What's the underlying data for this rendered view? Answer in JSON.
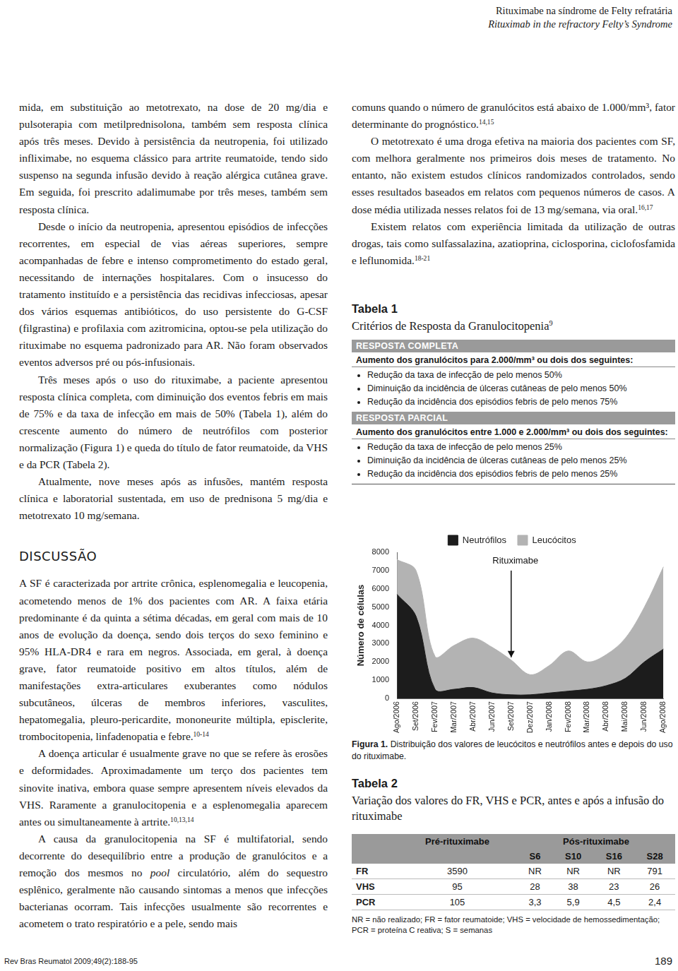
{
  "header": {
    "title": "Rituximabe na síndrome de Felty refratária",
    "subtitle": "Rituximab in the refractory Felty’s Syndrome"
  },
  "left_column": [
    {
      "kind": "p",
      "runs": [
        {
          "text": "mida, em substituição ao metotrexato, na dose de 20 mg/dia e pulsoterapia com metilprednisolona, também sem resposta clínica após três meses. Devido à persistência da neutropenia, foi utilizado infliximabe, no esquema clássico para artrite reumatoide, tendo sido suspenso na segunda infusão devido à reação alérgica cutânea grave. Em seguida, foi prescrito adalimumabe por três meses, também sem resposta clínica."
        }
      ]
    },
    {
      "kind": "p",
      "runs": [
        {
          "text": "Desde o início da neutropenia, apresentou episódios de infecções recorrentes, em especial de vias aéreas superiores, sempre acompanhadas de febre e intenso comprometimento do estado geral, necessitando de internações hospitalares. Com o insucesso do tratamento instituído e a persistência das recidivas infecciosas, apesar dos vários esquemas antibióticos, do uso persistente do G-CSF (filgrastina) e profilaxia com azitromicina, optou-se pela utilização do rituximabe no esquema padronizado para AR. Não foram observados eventos adversos pré ou pós-infusionais."
        }
      ]
    },
    {
      "kind": "p",
      "runs": [
        {
          "text": "Três meses após o uso do rituximabe, a paciente apresentou resposta clínica completa, com diminuição dos eventos febris em mais de 75% e da taxa de infecção em mais de 50% (Tabela 1), além do crescente aumento do número de neutrófilos com posterior normalização (Figura 1) e queda do título de fator reumatoide, da VHS e da PCR (Tabela 2)."
        }
      ]
    },
    {
      "kind": "p",
      "runs": [
        {
          "text": "Atualmente, nove meses após as infusões, mantém resposta clínica e laboratorial sustentada, em uso de prednisona 5 mg/dia e metotrexato 10 mg/semana."
        }
      ]
    },
    {
      "kind": "h",
      "text": "DISCUSSÃO"
    },
    {
      "kind": "p",
      "runs": [
        {
          "text": "A SF é caracterizada por artrite crônica, esplenomegalia e leucopenia, acometendo menos de 1% dos pacientes com AR. A faixa etária predominante é da quinta a sétima décadas, em geral com mais de 10 anos de evolução da doença, sendo dois terços do sexo feminino e 95% HLA-DR4 e rara em negros. Associada, em geral, à doença grave, fator reumatoide positivo em altos títulos, além de manifestações extra-articulares exuberantes como nódulos subcutâneos, úlceras de membros inferiores, vasculites, hepatomegalia, pleuro-pericardite, mononeurite múltipla, episclerite, trombocitopenia, linfadenopatia e febre."
        },
        {
          "text": "10-14",
          "sup": true
        }
      ]
    },
    {
      "kind": "p",
      "runs": [
        {
          "text": "A doença articular é usualmente grave no que se refere às erosões e deformidades. Aproximadamente um terço dos pacientes tem sinovite inativa, embora quase sempre apresentem níveis elevados da VHS. Raramente a granulocitopenia e a esplenomegalia aparecem antes ou simultaneamente à artrite."
        },
        {
          "text": "10,13,14",
          "sup": true
        }
      ]
    },
    {
      "kind": "p",
      "runs": [
        {
          "text": "A causa da granulocitopenia na SF é multifatorial, sendo decorrente do desequilíbrio entre a produção de granulócitos e a remoção dos mesmos no "
        },
        {
          "text": "pool",
          "italic": true
        },
        {
          "text": " circulatório, além do sequestro esplênico, geralmente não causando sintomas a menos que infecções bacterianas ocorram. Tais infecções usualmente são recorrentes e acometem o trato respiratório e a pele, sendo mais"
        }
      ]
    }
  ],
  "right_column": [
    {
      "kind": "p",
      "runs": [
        {
          "text": "comuns quando o número de granulócitos está abaixo de 1.000/mm³, fator determinante do prognóstico."
        },
        {
          "text": "14,15",
          "sup": true
        }
      ]
    },
    {
      "kind": "p",
      "runs": [
        {
          "text": "O metotrexato é uma droga efetiva na maioria dos pacientes com SF, com melhora geralmente nos primeiros dois meses de tratamento. No entanto, não existem estudos clínicos randomizados controlados, sendo esses resultados baseados em relatos com pequenos números de casos. A dose média utilizada nesses relatos foi de 13 mg/semana, via oral."
        },
        {
          "text": "16,17",
          "sup": true
        }
      ]
    },
    {
      "kind": "p",
      "runs": [
        {
          "text": "Existem relatos com experiência limitada da utilização de outras drogas, tais como sulfassalazina, azatioprina, ciclosporina, ciclofosfamida e leflunomida."
        },
        {
          "text": "18-21",
          "sup": true
        }
      ]
    }
  ],
  "table1": {
    "title": "Tabela 1",
    "subtitle": [
      {
        "text": "Critérios de Resposta da Granulocitopenia"
      },
      {
        "text": "9",
        "sup": true
      }
    ],
    "sections": [
      {
        "heading": "RESPOSTA COMPLETA",
        "criterion": "Aumento dos granulócitos para 2.000/mm³ ou dois dos seguintes:",
        "items": [
          "Redução da taxa de infecção de pelo menos 50%",
          "Diminuição da incidência de úlceras cutâneas de pelo menos 50%",
          "Redução da incidência dos episódios febris de pelo menos 75%"
        ]
      },
      {
        "heading": "RESPOSTA PARCIAL",
        "criterion": "Aumento dos granulócitos entre 1.000 e 2.000/mm³ ou dois dos seguintes:",
        "items": [
          "Redução da taxa de infecção de pelo menos 25%",
          "Diminuição da incidência de úlceras cutâneas de pelo menos 25%",
          "Redução da incidência dos episódios febris de pelo menos 25%"
        ]
      }
    ]
  },
  "chart_data": {
    "type": "area",
    "categories": [
      "Ago/2006",
      "Set/2006",
      "Fev/2007",
      "Mar/2007",
      "Abr/2007",
      "Jun/2007",
      "Set/2007",
      "Dez/2007",
      "Jan/2008",
      "Fev/2008",
      "Mar/2008",
      "Abr/2008",
      "Mai/2008",
      "Jun/2008",
      "Ago/2008"
    ],
    "series": [
      {
        "name": "Neutrófilos",
        "color": "#1c1c1c",
        "values": [
          5700,
          4500,
          500,
          500,
          600,
          300,
          200,
          200,
          300,
          400,
          500,
          700,
          1100,
          2000,
          2700
        ]
      },
      {
        "name": "Leucócitos",
        "color": "#b3b3b3",
        "values": [
          7600,
          7000,
          2300,
          2900,
          3300,
          2800,
          2100,
          1300,
          1800,
          2600,
          2000,
          2400,
          3300,
          5000,
          7200
        ]
      }
    ],
    "y_label": "Número de células",
    "ylim": [
      0,
      8000
    ],
    "yticks": [
      0,
      1000,
      2000,
      3000,
      4000,
      5000,
      6000,
      7000,
      8000
    ],
    "grid": false,
    "legend": "top",
    "annotations": [
      {
        "text": "Rituximabe",
        "x": "Set/2007"
      }
    ]
  },
  "figure_caption": [
    {
      "text": "Figura 1.",
      "bold": true
    },
    {
      "text": " Distribuição dos valores de leucócitos e neutrófilos antes e depois do uso do rituximabe."
    }
  ],
  "table2": {
    "title": "Tabela 2",
    "subtitle": "Variação dos valores do FR, VHS e PCR, antes e após a infusão do rituximabe",
    "header": [
      "Pré-rituximabe",
      "Pós-rituximabe"
    ],
    "subheader": [
      "S6",
      "S10",
      "S16",
      "S28"
    ],
    "rows": [
      [
        "FR",
        "3590",
        "NR",
        "NR",
        "NR",
        "791"
      ],
      [
        "VHS",
        "95",
        "28",
        "38",
        "23",
        "26"
      ],
      [
        "PCR",
        "105",
        "3,3",
        "5,9",
        "4,5",
        "2,4"
      ]
    ],
    "note": "NR = não realizado; FR = fator reumatoide; VHS = velocidade de hemossedimentação; PCR = proteína C reativa; S = semanas"
  },
  "footer": {
    "citation": "Rev Bras Reumatol 2009;49(2):188-95",
    "page": "189"
  }
}
